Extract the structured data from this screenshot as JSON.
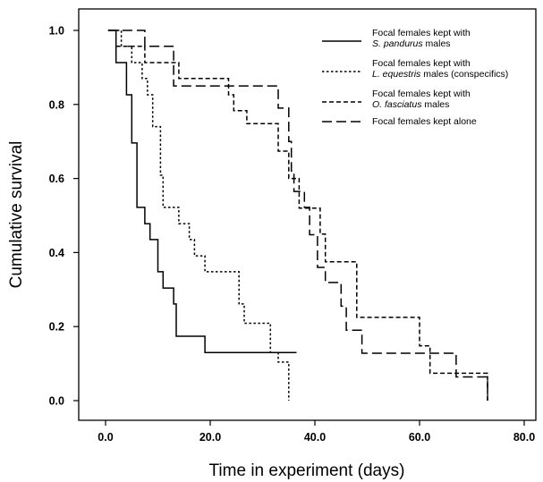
{
  "chart_data": {
    "type": "line",
    "step": true,
    "xlabel": "Time in experiment (days)",
    "ylabel": "Cumulative survival",
    "xlim": [
      -5,
      82
    ],
    "ylim": [
      -0.05,
      1.07
    ],
    "x_ticks": [
      "0.0",
      "20.0",
      "40.0",
      "60.0",
      "80.0"
    ],
    "y_ticks": [
      "0.0",
      "0.2",
      "0.4",
      "0.6",
      "0.8",
      "1.0"
    ],
    "legend_position": "top-right",
    "series": [
      {
        "name": "Focal females kept with S. pandurus males",
        "legend_line1": "Focal females kept with",
        "legend_line2_italic": "S. pandurus",
        "legend_line2_rest": " males",
        "dash": "solid",
        "points": [
          [
            0.5,
            1.0
          ],
          [
            2,
            1.0
          ],
          [
            2,
            0.913
          ],
          [
            4,
            0.913
          ],
          [
            4,
            0.826
          ],
          [
            5,
            0.826
          ],
          [
            5,
            0.696
          ],
          [
            6,
            0.696
          ],
          [
            6,
            0.522
          ],
          [
            7.5,
            0.522
          ],
          [
            7.5,
            0.478
          ],
          [
            8.5,
            0.478
          ],
          [
            8.5,
            0.435
          ],
          [
            10,
            0.435
          ],
          [
            10,
            0.348
          ],
          [
            11,
            0.348
          ],
          [
            11,
            0.304
          ],
          [
            13,
            0.304
          ],
          [
            13,
            0.261
          ],
          [
            13.5,
            0.261
          ],
          [
            13.5,
            0.174
          ],
          [
            19,
            0.174
          ],
          [
            19,
            0.13
          ],
          [
            32,
            0.13
          ],
          [
            32,
            0.13
          ],
          [
            36.5,
            0.13
          ]
        ]
      },
      {
        "name": "Focal females kept with L. equestris males (conspecifics)",
        "legend_line1": "Focal females kept with",
        "legend_line2_italic": "L. equestris",
        "legend_line2_rest": " males (conspecifics)",
        "dash": "dotted",
        "points": [
          [
            0.5,
            1.0
          ],
          [
            3,
            1.0
          ],
          [
            3,
            0.957
          ],
          [
            5,
            0.957
          ],
          [
            5,
            0.913
          ],
          [
            7,
            0.913
          ],
          [
            7,
            0.87
          ],
          [
            8,
            0.87
          ],
          [
            8,
            0.826
          ],
          [
            9,
            0.826
          ],
          [
            9,
            0.74
          ],
          [
            10.5,
            0.74
          ],
          [
            10.5,
            0.609
          ],
          [
            11,
            0.609
          ],
          [
            11,
            0.522
          ],
          [
            14,
            0.522
          ],
          [
            14,
            0.478
          ],
          [
            16,
            0.478
          ],
          [
            16,
            0.435
          ],
          [
            17,
            0.435
          ],
          [
            17,
            0.391
          ],
          [
            19,
            0.391
          ],
          [
            19,
            0.348
          ],
          [
            25.5,
            0.348
          ],
          [
            25.5,
            0.261
          ],
          [
            26.5,
            0.261
          ],
          [
            26.5,
            0.209
          ],
          [
            31.5,
            0.209
          ],
          [
            31.5,
            0.13
          ],
          [
            33,
            0.13
          ],
          [
            33,
            0.104
          ],
          [
            35,
            0.104
          ],
          [
            35,
            0.0
          ]
        ]
      },
      {
        "name": "Focal females kept with O. fasciatus males",
        "legend_line1": "Focal females kept with",
        "legend_line2_italic": "O. fasciatus",
        "legend_line2_rest": " males",
        "dash": "dashed-short",
        "points": [
          [
            2,
            0.957
          ],
          [
            7.5,
            0.957
          ],
          [
            7.5,
            0.913
          ],
          [
            14,
            0.913
          ],
          [
            14,
            0.87
          ],
          [
            23.5,
            0.87
          ],
          [
            23.5,
            0.826
          ],
          [
            24.5,
            0.826
          ],
          [
            24.5,
            0.783
          ],
          [
            27,
            0.783
          ],
          [
            27,
            0.748
          ],
          [
            33,
            0.748
          ],
          [
            33,
            0.674
          ],
          [
            35,
            0.674
          ],
          [
            35,
            0.6
          ],
          [
            37,
            0.6
          ],
          [
            37,
            0.52
          ],
          [
            41,
            0.52
          ],
          [
            41,
            0.45
          ],
          [
            42,
            0.45
          ],
          [
            42,
            0.375
          ],
          [
            48,
            0.375
          ],
          [
            48,
            0.225
          ],
          [
            60,
            0.225
          ],
          [
            60,
            0.148
          ],
          [
            62,
            0.148
          ],
          [
            62,
            0.074
          ],
          [
            73,
            0.074
          ],
          [
            73,
            0.0
          ]
        ]
      },
      {
        "name": "Focal females kept alone",
        "legend_line1": "Focal females kept alone",
        "legend_line2_italic": "",
        "legend_line2_rest": "",
        "dash": "dashed-long",
        "points": [
          [
            0.5,
            1.0
          ],
          [
            7.5,
            1.0
          ],
          [
            7.5,
            0.957
          ],
          [
            13,
            0.957
          ],
          [
            13,
            0.85
          ],
          [
            33,
            0.85
          ],
          [
            33,
            0.79
          ],
          [
            35,
            0.79
          ],
          [
            35,
            0.7
          ],
          [
            35.5,
            0.7
          ],
          [
            35.5,
            0.62
          ],
          [
            36,
            0.62
          ],
          [
            36,
            0.565
          ],
          [
            38,
            0.565
          ],
          [
            38,
            0.522
          ],
          [
            39,
            0.522
          ],
          [
            39,
            0.448
          ],
          [
            40.5,
            0.448
          ],
          [
            40.5,
            0.36
          ],
          [
            42,
            0.36
          ],
          [
            42,
            0.319
          ],
          [
            45,
            0.319
          ],
          [
            45,
            0.255
          ],
          [
            46,
            0.255
          ],
          [
            46,
            0.19
          ],
          [
            49,
            0.19
          ],
          [
            49,
            0.128
          ],
          [
            67,
            0.128
          ],
          [
            67,
            0.064
          ],
          [
            73,
            0.064
          ],
          [
            73,
            0.0
          ]
        ]
      }
    ],
    "colors": {
      "line": "#000000",
      "axis": "#000000",
      "background": "#ffffff"
    }
  }
}
